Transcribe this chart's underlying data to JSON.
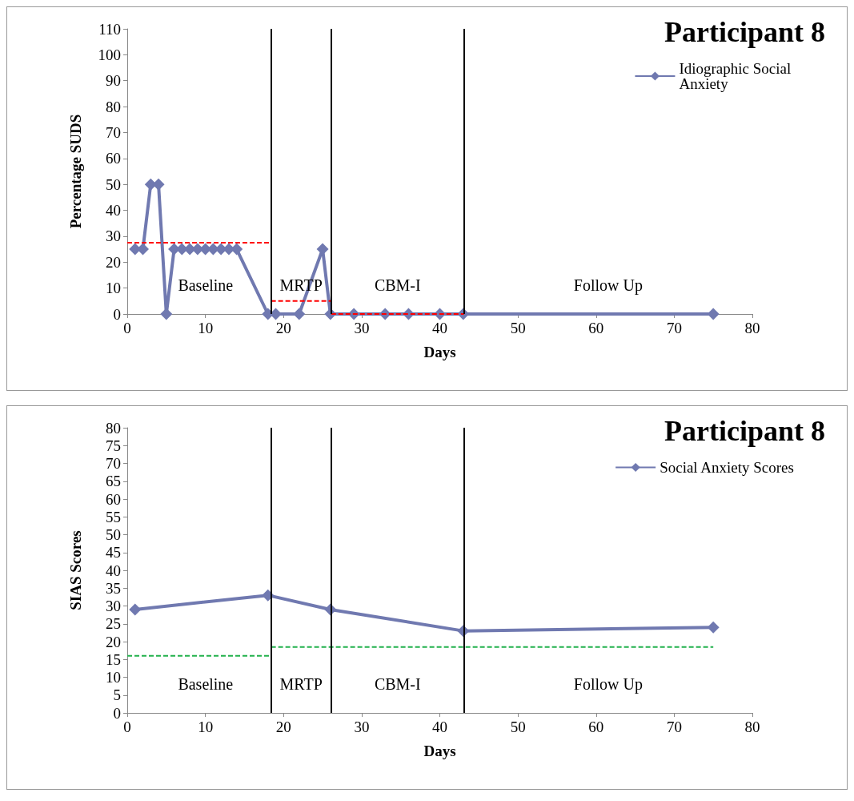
{
  "chart_data": [
    {
      "type": "line",
      "title": "Participant 8",
      "xlabel": "Days",
      "ylabel": "Percentage SUDS",
      "xlim": [
        0,
        80
      ],
      "xticks": [
        0,
        10,
        20,
        30,
        40,
        50,
        60,
        70,
        80
      ],
      "ylim": [
        0,
        110
      ],
      "yticks": [
        0,
        10,
        20,
        30,
        40,
        50,
        60,
        70,
        80,
        90,
        100,
        110
      ],
      "legend": "top right",
      "marker": "diamond",
      "series": [
        {
          "name": "Idiographic Social Anxiety",
          "color": "#7079b0",
          "x": [
            1,
            2,
            3,
            4,
            5,
            6,
            7,
            8,
            9,
            10,
            11,
            12,
            13,
            14,
            18,
            19,
            22,
            25,
            26,
            29,
            33,
            36,
            40,
            43,
            75
          ],
          "values": [
            25,
            25,
            50,
            50,
            0,
            25,
            25,
            25,
            25,
            25,
            25,
            25,
            25,
            25,
            0,
            0,
            0,
            25,
            0,
            0,
            0,
            0,
            0,
            0,
            0
          ]
        },
        {
          "color": "#ff0000",
          "x": [
            0,
            18.4
          ],
          "values": [
            27.5,
            27.5
          ],
          "line_style": "dashed",
          "marker": "none"
        },
        {
          "color": "#ff0000",
          "x": [
            18.4,
            26.1
          ],
          "values": [
            5,
            5
          ],
          "line_style": "dashed",
          "marker": "none"
        },
        {
          "color": "#ff0000",
          "x": [
            26.1,
            43.1
          ],
          "values": [
            0,
            0
          ],
          "line_style": "dashed",
          "marker": "none"
        }
      ],
      "ref_lines": [
        {
          "axis": "x",
          "value": 18.4,
          "color": "#000000"
        },
        {
          "axis": "x",
          "value": 26.1,
          "color": "#000000"
        },
        {
          "axis": "x",
          "value": 43.1,
          "color": "#000000"
        }
      ],
      "annotations": [
        "Baseline",
        "MRTP",
        "CBM-I",
        "Follow Up"
      ]
    },
    {
      "type": "line",
      "title": "Participant 8",
      "xlabel": "Days",
      "ylabel": "SIAS Scores",
      "xlim": [
        0,
        80
      ],
      "xticks": [
        0,
        10,
        20,
        30,
        40,
        50,
        60,
        70,
        80
      ],
      "ylim": [
        0,
        80
      ],
      "yticks": [
        0,
        5,
        10,
        15,
        20,
        25,
        30,
        35,
        40,
        45,
        50,
        55,
        60,
        65,
        70,
        75,
        80
      ],
      "legend": "top right",
      "marker": "diamond",
      "series": [
        {
          "name": "Social Anxiety Scores",
          "color": "#7079b0",
          "x": [
            1,
            18,
            26,
            43,
            75
          ],
          "values": [
            29,
            33,
            29,
            23,
            24
          ]
        },
        {
          "color": "#22b14c",
          "x": [
            0,
            18.4
          ],
          "values": [
            16,
            16
          ],
          "line_style": "dashed",
          "marker": "none"
        },
        {
          "color": "#22b14c",
          "x": [
            18.4,
            75
          ],
          "values": [
            18.5,
            18.5
          ],
          "line_style": "dashed",
          "marker": "none"
        }
      ],
      "ref_lines": [
        {
          "axis": "x",
          "value": 18.4,
          "color": "#000000"
        },
        {
          "axis": "x",
          "value": 26.1,
          "color": "#000000"
        },
        {
          "axis": "x",
          "value": 43.1,
          "color": "#000000"
        }
      ],
      "annotations": [
        "Baseline",
        "MRTP",
        "CBM-I",
        "Follow Up"
      ]
    }
  ]
}
